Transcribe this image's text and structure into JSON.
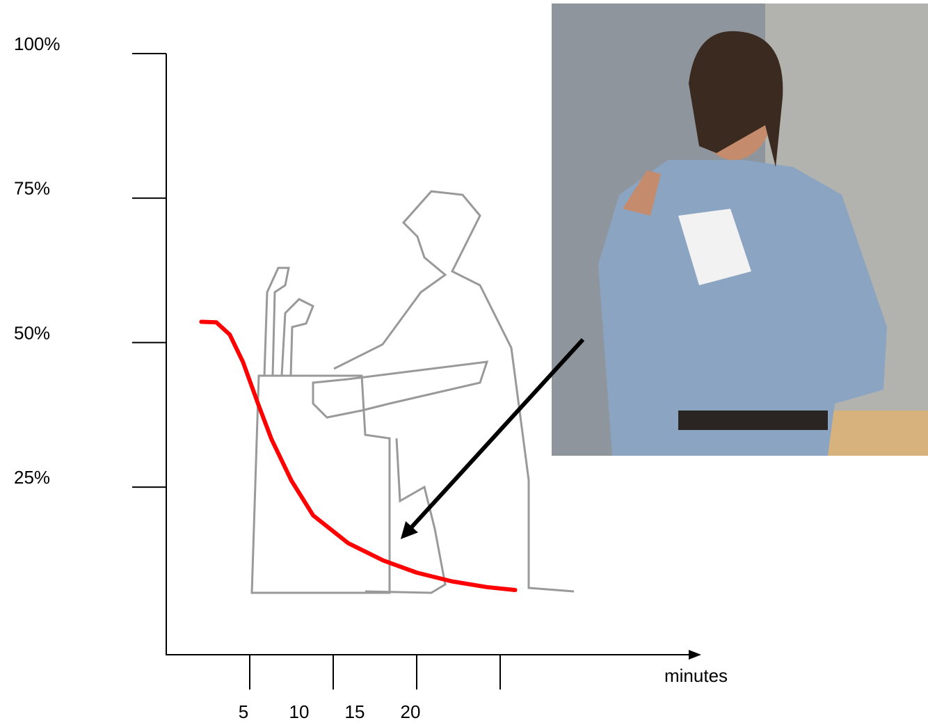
{
  "chart_data": {
    "type": "line",
    "x_label": "minutes",
    "xlim": [
      0,
      32
    ],
    "xticks": [
      5,
      10,
      15,
      20
    ],
    "ylim": [
      -4,
      100
    ],
    "yticks": [
      {
        "value": 100,
        "label": "100%"
      },
      {
        "value": 75,
        "label": "75%"
      },
      {
        "value": 50,
        "label": "50%"
      },
      {
        "value": 25,
        "label": "25%"
      }
    ],
    "series": [
      {
        "color": "#ff0000",
        "x": [
          2.1,
          3.0,
          3.8,
          4.6,
          5.5,
          6.3,
          7.5,
          8.8,
          10.9,
          13.0,
          15.0,
          17.1,
          19.2,
          20.9
        ],
        "values": [
          53.6,
          53.5,
          51.4,
          46.6,
          39.4,
          33.3,
          26.1,
          20.1,
          15.3,
          12.3,
          10.2,
          8.7,
          7.7,
          7.2
        ]
      }
    ]
  }
}
